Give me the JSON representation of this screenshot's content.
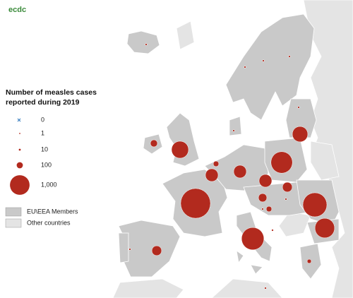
{
  "logo": "ecdc",
  "legend": {
    "title": "Number of measles cases reported during 2019",
    "sizes": [
      0,
      1,
      10,
      100,
      {
        "value": 1000,
        "label": "1,000"
      }
    ],
    "areas": [
      "EU\\EEA Members",
      "Other countries"
    ]
  },
  "cases": [
    2300,
    1200,
    1500,
    1300,
    1000,
    750,
    620,
    420,
    420,
    420,
    250,
    185,
    80,
    250,
    130,
    80,
    10,
    10,
    10,
    10,
    10,
    10,
    10,
    10,
    45,
    10,
    10,
    10
  ]
}
